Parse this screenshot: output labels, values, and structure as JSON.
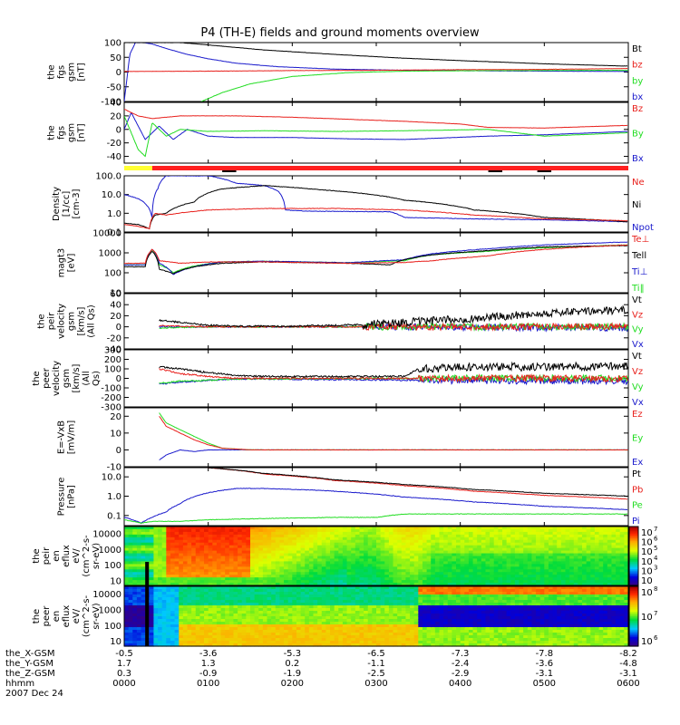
{
  "title": "P4 (TH-E) fields and ground moments overview",
  "colors": {
    "black": "#000000",
    "red": "#e8201c",
    "green": "#22dd22",
    "blue": "#1a1acc",
    "yellow": "#ffff33",
    "flag_red": "#ff2020"
  },
  "chart_data": [
    {
      "type": "line",
      "ylabel": [
        "the",
        "fgs",
        "gsm",
        "[nT]"
      ],
      "yticks": [
        "100",
        "50",
        "0",
        "-50",
        "-100"
      ],
      "ylim": [
        -100,
        100
      ],
      "legend": [
        "Bt",
        "bz",
        "by",
        "bx"
      ],
      "series": [
        {
          "name": "Bt",
          "color": "black",
          "x": [
            0,
            20,
            40,
            60,
            100,
            150,
            200,
            250,
            300,
            360
          ],
          "y": [
            100,
            100,
            100,
            92,
            75,
            60,
            47,
            37,
            28,
            20
          ]
        },
        {
          "name": "bz",
          "color": "red",
          "x": [
            0,
            60,
            120,
            180,
            240,
            300,
            360
          ],
          "y": [
            2,
            3,
            5,
            6,
            8,
            9,
            12
          ]
        },
        {
          "name": "by",
          "color": "green",
          "x": [
            55,
            70,
            90,
            120,
            160,
            200,
            260,
            360
          ],
          "y": [
            -100,
            -70,
            -40,
            -15,
            -2,
            3,
            5,
            6
          ]
        },
        {
          "name": "bx",
          "color": "blue",
          "x": [
            0,
            4,
            8,
            14,
            20,
            30,
            45,
            60,
            80,
            110,
            150,
            200,
            260,
            360
          ],
          "y": [
            -100,
            60,
            100,
            100,
            95,
            80,
            60,
            45,
            30,
            18,
            10,
            6,
            4,
            2
          ]
        }
      ]
    },
    {
      "type": "line",
      "ylabel": [
        "the",
        "fgs",
        "gsm",
        "[nT]"
      ],
      "yticks": [
        "40",
        "20",
        "0",
        "-20",
        "-40"
      ],
      "ylim": [
        -50,
        40
      ],
      "legend": [
        "Bz",
        "By",
        "Bx"
      ],
      "series": [
        {
          "name": "Bz",
          "color": "red",
          "x": [
            0,
            10,
            20,
            40,
            80,
            120,
            160,
            200,
            240,
            260,
            300,
            360
          ],
          "y": [
            30,
            20,
            16,
            20,
            20,
            18,
            15,
            12,
            8,
            3,
            2,
            6
          ]
        },
        {
          "name": "By",
          "color": "green",
          "x": [
            0,
            5,
            10,
            15,
            20,
            30,
            40,
            60,
            100,
            150,
            200,
            260,
            300,
            360
          ],
          "y": [
            20,
            -5,
            -30,
            -40,
            10,
            -10,
            0,
            -3,
            -2,
            -3,
            -2,
            0,
            -10,
            -5
          ]
        },
        {
          "name": "Bx",
          "color": "blue",
          "x": [
            0,
            5,
            15,
            25,
            35,
            45,
            60,
            80,
            120,
            160,
            200,
            260,
            300,
            360
          ],
          "y": [
            0,
            25,
            -15,
            5,
            -15,
            0,
            -10,
            -12,
            -12,
            -14,
            -15,
            -10,
            -8,
            -3
          ]
        }
      ]
    },
    {
      "type": "line",
      "ylabel": [
        "Density",
        "[1/cc]",
        "[cm-3]"
      ],
      "yticks": [
        "100.0",
        "10.0",
        "1.0",
        "0.1"
      ],
      "ylim": [
        0.1,
        100
      ],
      "log": true,
      "legend": [
        "Ne",
        "Ni",
        "Npot"
      ],
      "series": [
        {
          "name": "Ne",
          "color": "red",
          "x": [
            0,
            10,
            18,
            22,
            30,
            60,
            100,
            150,
            200,
            250,
            300,
            360
          ],
          "y": [
            0.25,
            0.2,
            0.15,
            1.0,
            0.8,
            1.5,
            1.8,
            1.8,
            1.5,
            0.8,
            0.5,
            0.4
          ]
        },
        {
          "name": "Ni",
          "color": "black",
          "x": [
            0,
            10,
            18,
            22,
            30,
            50,
            70,
            100,
            140,
            200,
            250,
            300,
            360
          ],
          "y": [
            0.3,
            0.25,
            0.15,
            0.8,
            1.0,
            4,
            20,
            30,
            18,
            5,
            1.5,
            0.6,
            0.35
          ]
        },
        {
          "name": "Npot",
          "color": "blue",
          "x": [
            0,
            12,
            20,
            24,
            30,
            60,
            80,
            100,
            110,
            115,
            130,
            190,
            200,
            250,
            300,
            360
          ],
          "y": [
            10,
            5,
            0.5,
            20,
            100,
            100,
            40,
            30,
            15,
            1.5,
            1.3,
            1.2,
            0.6,
            0.5,
            0.45,
            0.35
          ]
        }
      ]
    },
    {
      "type": "line",
      "ylabel": [
        "magt3",
        "[eV]"
      ],
      "yticks": [
        "10000",
        "1000",
        "100",
        "10"
      ],
      "ylim": [
        10,
        10000
      ],
      "log": true,
      "legend": [
        "Te⊥",
        "Tell",
        "Ti⊥",
        "Ti‖"
      ],
      "series": [
        {
          "name": "Te⊥",
          "color": "red",
          "x": [
            0,
            15,
            20,
            25,
            40,
            60,
            100,
            160,
            200,
            220,
            260,
            300,
            360
          ],
          "y": [
            300,
            300,
            1500,
            400,
            300,
            350,
            350,
            300,
            330,
            400,
            700,
            1500,
            2500
          ]
        },
        {
          "name": "Tell",
          "color": "black",
          "x": [
            0,
            15,
            20,
            25,
            35,
            50,
            70,
            100,
            160,
            190,
            200,
            220,
            260,
            300,
            360
          ],
          "y": [
            200,
            200,
            1200,
            150,
            90,
            200,
            300,
            350,
            300,
            250,
            450,
            800,
            1300,
            2000,
            2300
          ]
        },
        {
          "name": "Ti⊥",
          "color": "blue",
          "x": [
            0,
            15,
            20,
            25,
            35,
            50,
            70,
            100,
            160,
            200,
            220,
            260,
            300,
            360
          ],
          "y": [
            250,
            250,
            1500,
            300,
            80,
            200,
            350,
            380,
            320,
            450,
            900,
            1600,
            2500,
            3500
          ]
        },
        {
          "name": "Ti‖",
          "color": "green",
          "x": [
            0,
            15,
            20,
            25,
            35,
            50,
            70,
            100,
            160,
            200,
            220,
            260,
            300,
            360
          ],
          "y": [
            250,
            250,
            1400,
            250,
            100,
            220,
            350,
            380,
            320,
            400,
            800,
            1200,
            1800,
            2500
          ]
        }
      ]
    },
    {
      "type": "line",
      "ylabel": [
        "the",
        "peir",
        "velocity",
        "gsm",
        "[km/s]",
        "(All Qs)"
      ],
      "yticks": [
        "60",
        "40",
        "20",
        "0",
        "-20",
        "-40"
      ],
      "ylim": [
        -40,
        60
      ],
      "legend": [
        "Vt",
        "Vz",
        "Vy",
        "Vx"
      ],
      "noise_from": 170,
      "series": [
        {
          "name": "Vt",
          "color": "black",
          "x": [
            25,
            40,
            60,
            80,
            120,
            170,
            250,
            300,
            360
          ],
          "y": [
            12,
            8,
            3,
            1,
            1,
            4,
            15,
            25,
            30
          ]
        },
        {
          "name": "Vz",
          "color": "red",
          "x": [
            25,
            60,
            170,
            360
          ],
          "y": [
            2,
            0,
            0,
            0
          ]
        },
        {
          "name": "Vy",
          "color": "green",
          "x": [
            25,
            60,
            170,
            360
          ],
          "y": [
            -2,
            0,
            0,
            0
          ]
        },
        {
          "name": "Vx",
          "color": "blue",
          "x": [
            25,
            60,
            170,
            360
          ],
          "y": [
            0,
            0,
            0,
            -2
          ]
        }
      ]
    },
    {
      "type": "line",
      "ylabel": [
        "the",
        "peer",
        "velocity",
        "gsm",
        "[km/s]",
        "(All",
        "Qs)"
      ],
      "yticks": [
        "300",
        "200",
        "100",
        "0",
        "-100",
        "-200",
        "-300"
      ],
      "ylim": [
        -300,
        300
      ],
      "legend": [
        "Vt",
        "Vz",
        "Vy",
        "Vx"
      ],
      "noise_from": 210,
      "series": [
        {
          "name": "Vt",
          "color": "black",
          "x": [
            25,
            40,
            60,
            80,
            100,
            150,
            200,
            210,
            250,
            300,
            360
          ],
          "y": [
            120,
            100,
            60,
            30,
            20,
            20,
            20,
            100,
            120,
            120,
            130
          ]
        },
        {
          "name": "Vz",
          "color": "red",
          "x": [
            25,
            40,
            60,
            80,
            210,
            360
          ],
          "y": [
            100,
            50,
            20,
            0,
            0,
            0
          ]
        },
        {
          "name": "Vy",
          "color": "green",
          "x": [
            25,
            40,
            60,
            80,
            210,
            360
          ],
          "y": [
            -50,
            -30,
            -20,
            -5,
            0,
            0
          ]
        },
        {
          "name": "Vx",
          "color": "blue",
          "x": [
            25,
            40,
            60,
            80,
            210,
            360
          ],
          "y": [
            -60,
            -40,
            -20,
            -5,
            -20,
            -30
          ]
        }
      ]
    },
    {
      "type": "line",
      "ylabel": [
        "E=-VxB",
        "[mV/m]"
      ],
      "yticks": [
        "20",
        "10",
        "0",
        "-10"
      ],
      "ylim": [
        -10,
        25
      ],
      "legend": [
        "Ez",
        "Ey",
        "Ex"
      ],
      "series": [
        {
          "name": "Ez",
          "color": "red",
          "x": [
            25,
            30,
            40,
            50,
            60,
            70,
            90,
            360
          ],
          "y": [
            20,
            14,
            10,
            6,
            3,
            1,
            0,
            0
          ]
        },
        {
          "name": "Ey",
          "color": "green",
          "x": [
            25,
            30,
            40,
            50,
            60,
            70,
            90,
            360
          ],
          "y": [
            22,
            16,
            12,
            8,
            4,
            1,
            0,
            0
          ]
        },
        {
          "name": "Ex",
          "color": "blue",
          "x": [
            25,
            30,
            40,
            50,
            60,
            70,
            90,
            360
          ],
          "y": [
            -6,
            -3,
            0,
            -1,
            0,
            0,
            0,
            0
          ]
        }
      ]
    },
    {
      "type": "line",
      "ylabel": [
        "Pressure",
        "[nPa]"
      ],
      "yticks": [
        "10.0",
        "1.0",
        "0.1"
      ],
      "ylim": [
        0.03,
        30
      ],
      "log": true,
      "legend": [
        "Pt",
        "Pb",
        "Pe",
        "Pi"
      ],
      "series": [
        {
          "name": "Pt",
          "color": "black",
          "x": [
            60,
            100,
            150,
            200,
            250,
            300,
            360
          ],
          "y": [
            30,
            15,
            7,
            4,
            2.2,
            1.4,
            1.0
          ]
        },
        {
          "name": "Pb",
          "color": "red",
          "x": [
            60,
            100,
            150,
            200,
            250,
            300,
            360
          ],
          "y": [
            30,
            14,
            6.5,
            3.5,
            1.8,
            1.1,
            0.7
          ]
        },
        {
          "name": "Pe",
          "color": "green",
          "x": [
            0,
            12,
            20,
            40,
            60,
            100,
            150,
            180,
            200,
            250,
            300,
            360
          ],
          "y": [
            0.06,
            0.04,
            0.05,
            0.05,
            0.06,
            0.07,
            0.08,
            0.08,
            0.12,
            0.12,
            0.12,
            0.12
          ]
        },
        {
          "name": "Pi",
          "color": "blue",
          "x": [
            0,
            12,
            20,
            30,
            40,
            60,
            80,
            100,
            140,
            200,
            250,
            300,
            360
          ],
          "y": [
            0.08,
            0.04,
            0.08,
            0.15,
            0.4,
            1.5,
            2.5,
            2.5,
            2.0,
            0.9,
            0.5,
            0.3,
            0.2
          ]
        }
      ]
    },
    {
      "type": "heatmap",
      "ylabel": [
        "the",
        "peir",
        "en",
        "eflux",
        "eV/",
        "(cm^2-s-",
        "sr-eV)"
      ],
      "yticks": [
        "10000",
        "1000",
        "100",
        "10"
      ],
      "ylim": [
        5,
        30000
      ],
      "log": true,
      "colorbar_ticks": [
        "10",
        "10",
        "10",
        "10",
        "10",
        "10"
      ],
      "colorbar_exps": [
        "7",
        "6",
        "5",
        "4",
        "3",
        ""
      ]
    },
    {
      "type": "heatmap",
      "ylabel": [
        "the",
        "peer",
        "en",
        "eflux",
        "eV/",
        "(cm^2-s-",
        "sr-eV)"
      ],
      "yticks": [
        "10000",
        "1000",
        "100",
        "10"
      ],
      "ylim": [
        5,
        30000
      ],
      "log": true,
      "colorbar_ticks": [
        "10",
        "10",
        "10"
      ],
      "colorbar_exps": [
        "8",
        "7",
        "6"
      ]
    }
  ],
  "xaxis": {
    "row_labels": [
      "the_X-GSM",
      "the_Y-GSM",
      "the_Z-GSM",
      "hhmm",
      "2007 Dec 24"
    ],
    "ticks": [
      {
        "x": -0.5,
        "y": 1.7,
        "z": 0.3,
        "t": "0000",
        "xs": "-0.5",
        "ys": "1.7",
        "zs": "0.3"
      },
      {
        "x": -3.6,
        "y": 1.3,
        "z": -0.9,
        "t": "0100",
        "xs": "-3.6",
        "ys": "1.3",
        "zs": "-0.9"
      },
      {
        "x": -5.3,
        "y": 0.2,
        "z": -1.9,
        "t": "0200",
        "xs": "-5.3",
        "ys": "0.2",
        "zs": "-1.9"
      },
      {
        "x": -6.5,
        "y": -1.1,
        "z": -2.5,
        "t": "0300",
        "xs": "-6.5",
        "ys": "-1.1",
        "zs": "-2.5"
      },
      {
        "x": -7.3,
        "y": -2.4,
        "z": -2.9,
        "t": "0400",
        "xs": "-7.3",
        "ys": "-2.4",
        "zs": "-2.9"
      },
      {
        "x": -7.8,
        "y": -3.6,
        "z": -3.1,
        "t": "0500",
        "xs": "-7.8",
        "ys": "-3.6",
        "zs": "-3.1"
      },
      {
        "x": -8.2,
        "y": -4.8,
        "z": -3.1,
        "t": "0600",
        "xs": "-8.2",
        "ys": "-4.8",
        "zs": "-3.1"
      }
    ]
  }
}
